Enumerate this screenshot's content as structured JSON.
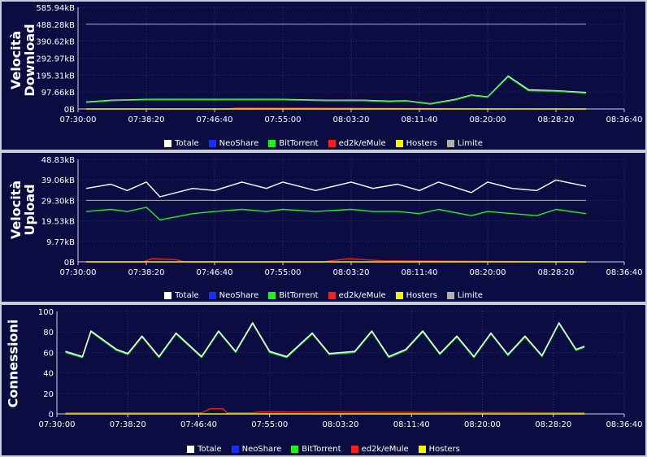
{
  "colors": {
    "Totale": "#ffffff",
    "NeoShare": "#1a2cff",
    "BitTorrent": "#22ee22",
    "ed2k/eMule": "#ee2222",
    "Hosters": "#f4f400",
    "Limite": "#b0b0b0",
    "background": "#0b0c42",
    "grid": "#2c3272"
  },
  "chart_data": [
    {
      "type": "line",
      "title": "",
      "ylabel": "Velocità Download",
      "ylabel_lines": [
        "Velocità",
        "Download"
      ],
      "ytick_labels": [
        "0B",
        "97.66kB",
        "195.31kB",
        "292.97kB",
        "390.62kB",
        "488.28kB",
        "585.94kB"
      ],
      "ylim": [
        0,
        585.94
      ],
      "x_tick_labels": [
        "07:30:00",
        "07:38:20",
        "07:46:40",
        "07:55:00",
        "08:03:20",
        "08:11:40",
        "08:20:00",
        "08:28:20",
        "08:36:40"
      ],
      "legend": [
        "Totale",
        "NeoShare",
        "BitTorrent",
        "ed2k/eMule",
        "Hosters",
        "Limite"
      ],
      "series": [
        {
          "name": "Totale",
          "x": [
            "07:31:00",
            "07:34:00",
            "07:38:20",
            "07:44:00",
            "07:50:00",
            "07:55:00",
            "08:00:00",
            "08:05:00",
            "08:08:00",
            "08:10:00",
            "08:13:00",
            "08:16:00",
            "08:18:00",
            "08:20:00",
            "08:22:30",
            "08:25:00",
            "08:28:20",
            "08:32:00"
          ],
          "values": [
            40,
            50,
            55,
            55,
            55,
            55,
            50,
            50,
            45,
            48,
            30,
            55,
            80,
            70,
            190,
            110,
            105,
            95
          ]
        },
        {
          "name": "BitTorrent",
          "x": [
            "07:31:00",
            "07:34:00",
            "07:38:20",
            "07:44:00",
            "07:50:00",
            "07:55:00",
            "08:00:00",
            "08:05:00",
            "08:08:00",
            "08:10:00",
            "08:13:00",
            "08:16:00",
            "08:18:00",
            "08:20:00",
            "08:22:30",
            "08:25:00",
            "08:28:20",
            "08:32:00"
          ],
          "values": [
            38,
            48,
            53,
            53,
            53,
            53,
            48,
            48,
            42,
            46,
            28,
            52,
            78,
            68,
            185,
            105,
            102,
            92
          ]
        },
        {
          "name": "ed2k/eMule",
          "x": [
            "07:31:00",
            "07:48:00",
            "07:49:30",
            "08:32:00"
          ],
          "values": [
            0,
            0,
            5,
            0
          ]
        },
        {
          "name": "Hosters",
          "x": [
            "07:31:00",
            "08:32:00"
          ],
          "values": [
            0,
            0
          ]
        },
        {
          "name": "Limite",
          "x": [
            "07:31:00",
            "08:32:00"
          ],
          "values": [
            488.28,
            488.28
          ]
        }
      ]
    },
    {
      "type": "line",
      "title": "",
      "ylabel": "Velocità Upload",
      "ylabel_lines": [
        "Velocità",
        "Upload"
      ],
      "ytick_labels": [
        "0B",
        "9.77kB",
        "19.53kB",
        "29.30kB",
        "39.06kB",
        "48.83kB"
      ],
      "ylim": [
        0,
        48.83
      ],
      "x_tick_labels": [
        "07:30:00",
        "07:38:20",
        "07:46:40",
        "07:55:00",
        "08:03:20",
        "08:11:40",
        "08:20:00",
        "08:28:20",
        "08:36:40"
      ],
      "legend": [
        "Totale",
        "NeoShare",
        "BitTorrent",
        "ed2k/eMule",
        "Hosters",
        "Limite"
      ],
      "series": [
        {
          "name": "Totale",
          "x": [
            "07:31:00",
            "07:34:00",
            "07:36:00",
            "07:38:20",
            "07:40:00",
            "07:44:00",
            "07:46:40",
            "07:50:00",
            "07:53:00",
            "07:55:00",
            "07:59:00",
            "08:03:20",
            "08:06:00",
            "08:09:00",
            "08:11:40",
            "08:14:00",
            "08:18:00",
            "08:20:00",
            "08:23:00",
            "08:26:00",
            "08:28:20",
            "08:32:00"
          ],
          "values": [
            35,
            37,
            34,
            38,
            31,
            35,
            34,
            38,
            35,
            38,
            34,
            38,
            35,
            37,
            34,
            38,
            33,
            38,
            35,
            34,
            39,
            36
          ]
        },
        {
          "name": "BitTorrent",
          "x": [
            "07:31:00",
            "07:34:00",
            "07:36:00",
            "07:38:20",
            "07:40:00",
            "07:44:00",
            "07:46:40",
            "07:50:00",
            "07:53:00",
            "07:55:00",
            "07:59:00",
            "08:03:20",
            "08:06:00",
            "08:09:00",
            "08:11:40",
            "08:14:00",
            "08:18:00",
            "08:20:00",
            "08:23:00",
            "08:26:00",
            "08:28:20",
            "08:32:00"
          ],
          "values": [
            24,
            25,
            24,
            26,
            20,
            23,
            24,
            25,
            24,
            25,
            24,
            25,
            24,
            24,
            23,
            25,
            22,
            24,
            23,
            22,
            25,
            23
          ]
        },
        {
          "name": "Limite",
          "x": [
            "07:31:00",
            "08:32:00"
          ],
          "values": [
            29.3,
            29.3
          ]
        },
        {
          "name": "ed2k/eMule",
          "x": [
            "07:31:00",
            "07:38:00",
            "07:39:00",
            "07:42:00",
            "07:43:00",
            "08:00:00",
            "08:03:00",
            "08:07:00",
            "08:32:00"
          ],
          "values": [
            0,
            0,
            1.5,
            1.0,
            0,
            0,
            1.5,
            0.5,
            0
          ]
        },
        {
          "name": "Hosters",
          "x": [
            "07:31:00",
            "08:32:00"
          ],
          "values": [
            0,
            0
          ]
        }
      ]
    },
    {
      "type": "line",
      "title": "",
      "ylabel": "Connessioni",
      "ylabel_lines": [
        "Connessioni"
      ],
      "ytick_labels": [
        "0",
        "20",
        "40",
        "60",
        "80",
        "100"
      ],
      "ylim": [
        0,
        100
      ],
      "x_tick_labels": [
        "07:30:00",
        "07:38:20",
        "07:46:40",
        "07:55:00",
        "08:03:20",
        "08:11:40",
        "08:20:00",
        "08:28:20",
        "08:36:40"
      ],
      "legend": [
        "Totale",
        "NeoShare",
        "BitTorrent",
        "ed2k/eMule",
        "Hosters"
      ],
      "series": [
        {
          "name": "BitTorrent",
          "x": [
            "07:31:00",
            "07:33:00",
            "07:34:00",
            "07:37:00",
            "07:38:20",
            "07:40:00",
            "07:42:00",
            "07:44:00",
            "07:47:00",
            "07:49:00",
            "07:51:00",
            "07:53:00",
            "07:55:00",
            "07:57:00",
            "08:00:00",
            "08:02:00",
            "08:05:00",
            "08:07:00",
            "08:09:00",
            "08:11:00",
            "08:13:00",
            "08:15:00",
            "08:17:00",
            "08:19:00",
            "08:21:00",
            "08:23:00",
            "08:25:00",
            "08:27:00",
            "08:29:00",
            "08:31:00",
            "08:32:00"
          ],
          "values": [
            60,
            55,
            80,
            62,
            58,
            75,
            55,
            78,
            55,
            80,
            60,
            88,
            60,
            55,
            78,
            58,
            60,
            80,
            55,
            62,
            80,
            58,
            75,
            55,
            78,
            57,
            75,
            56,
            88,
            62,
            65
          ]
        },
        {
          "name": "Totale",
          "x": [
            "07:31:00",
            "07:33:00",
            "07:34:00",
            "07:37:00",
            "07:38:20",
            "07:40:00",
            "07:42:00",
            "07:44:00",
            "07:47:00",
            "07:49:00",
            "07:51:00",
            "07:53:00",
            "07:55:00",
            "07:57:00",
            "08:00:00",
            "08:02:00",
            "08:05:00",
            "08:07:00",
            "08:09:00",
            "08:11:00",
            "08:13:00",
            "08:15:00",
            "08:17:00",
            "08:19:00",
            "08:21:00",
            "08:23:00",
            "08:25:00",
            "08:27:00",
            "08:29:00",
            "08:31:00",
            "08:32:00"
          ],
          "values": [
            61,
            56,
            81,
            63,
            59,
            76,
            56,
            79,
            56,
            81,
            61,
            89,
            61,
            56,
            79,
            59,
            61,
            81,
            56,
            63,
            81,
            59,
            76,
            56,
            79,
            58,
            76,
            57,
            89,
            63,
            66
          ]
        },
        {
          "name": "ed2k/eMule",
          "x": [
            "07:31:00",
            "07:47:00",
            "07:48:00",
            "07:49:30",
            "07:50:00",
            "07:53:00",
            "07:54:00",
            "08:32:00"
          ],
          "values": [
            1,
            1,
            5,
            5,
            1,
            1,
            2,
            1
          ]
        },
        {
          "name": "Hosters",
          "x": [
            "07:31:00",
            "08:32:00"
          ],
          "values": [
            0,
            0
          ]
        }
      ]
    }
  ]
}
